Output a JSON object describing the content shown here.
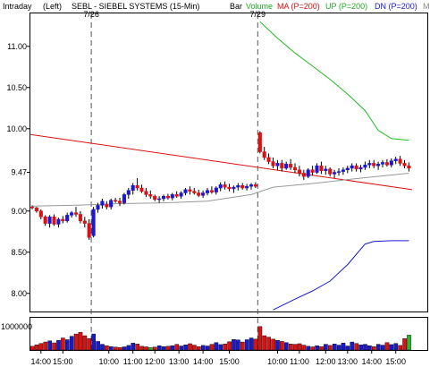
{
  "header": {
    "mode": "Intraday",
    "side": "(Left)",
    "symbol": "SEBL - SIEBEL SYSTEMS (15-Min)",
    "chart_type": "Bar",
    "volume_label": "Volume",
    "ma_label": "MA (P=200)",
    "up_label": "UP (P=200)",
    "dn_label": "DN (P=200)",
    "extra": "M"
  },
  "colors": {
    "up_candle": "#1a1acc",
    "down_candle": "#dd1111",
    "ma_line": "#dd1111",
    "up_band": "#22bb22",
    "dn_band": "#1a1acc",
    "avg_line": "#999999",
    "vol_green": "#22bb22"
  },
  "chart_data": {
    "type": "candlestick",
    "price_axis": {
      "ylim": [
        7.78,
        11.4
      ],
      "ticks": [
        "8.00",
        "8.50",
        "9.00",
        "9.47",
        "10.00",
        "10.50",
        "11.00"
      ],
      "tick_values": [
        8.0,
        8.5,
        9.0,
        9.47,
        10.0,
        10.5,
        11.0
      ]
    },
    "volume_axis": {
      "ylim": [
        0,
        1000000
      ],
      "ticks": [
        "1000000"
      ]
    },
    "date_markers": [
      {
        "label": "7/26",
        "index": 14
      },
      {
        "label": "7/29",
        "index": 52
      }
    ],
    "x_ticks": [
      {
        "label": "14:00",
        "index": 2
      },
      {
        "label": "15:00",
        "index": 7
      },
      {
        "label": "10:00",
        "index": 17.5
      },
      {
        "label": "11:00",
        "index": 23
      },
      {
        "label": "12:00",
        "index": 28
      },
      {
        "label": "13:00",
        "index": 33.5
      },
      {
        "label": "14:00",
        "index": 39
      },
      {
        "label": "15:00",
        "index": 45
      },
      {
        "label": "10:00",
        "index": 56
      },
      {
        "label": "11:00",
        "index": 61
      },
      {
        "label": "12:00",
        "index": 67
      },
      {
        "label": "13:00",
        "index": 72
      },
      {
        "label": "14:00",
        "index": 77.5
      },
      {
        "label": "15:00",
        "index": 83
      }
    ],
    "candles": [
      [
        9.05,
        9.07,
        9.02,
        9.04
      ],
      [
        9.04,
        9.05,
        8.98,
        9.0
      ],
      [
        9.0,
        9.02,
        8.9,
        8.93
      ],
      [
        8.93,
        8.95,
        8.82,
        8.85
      ],
      [
        8.85,
        8.95,
        8.8,
        8.93
      ],
      [
        8.93,
        8.96,
        8.82,
        8.84
      ],
      [
        8.84,
        8.92,
        8.8,
        8.9
      ],
      [
        8.9,
        8.94,
        8.85,
        8.88
      ],
      [
        8.88,
        8.98,
        8.86,
        8.95
      ],
      [
        8.95,
        9.0,
        8.92,
        8.98
      ],
      [
        8.98,
        9.05,
        8.93,
        8.96
      ],
      [
        8.96,
        9.0,
        8.85,
        8.88
      ],
      [
        8.88,
        8.93,
        8.8,
        8.85
      ],
      [
        8.85,
        8.9,
        8.65,
        8.68
      ],
      [
        8.7,
        9.05,
        8.68,
        9.02
      ],
      [
        9.02,
        9.1,
        8.98,
        9.07
      ],
      [
        9.07,
        9.15,
        9.03,
        9.12
      ],
      [
        9.08,
        9.12,
        9.02,
        9.05
      ],
      [
        9.05,
        9.15,
        9.02,
        9.13
      ],
      [
        9.13,
        9.16,
        9.1,
        9.12
      ],
      [
        9.12,
        9.16,
        9.06,
        9.1
      ],
      [
        9.1,
        9.22,
        9.08,
        9.2
      ],
      [
        9.2,
        9.28,
        9.15,
        9.25
      ],
      [
        9.25,
        9.34,
        9.2,
        9.31
      ],
      [
        9.31,
        9.4,
        9.25,
        9.28
      ],
      [
        9.28,
        9.32,
        9.22,
        9.24
      ],
      [
        9.24,
        9.28,
        9.17,
        9.2
      ],
      [
        9.2,
        9.25,
        9.15,
        9.18
      ],
      [
        9.18,
        9.2,
        9.12,
        9.14
      ],
      [
        9.14,
        9.18,
        9.1,
        9.15
      ],
      [
        9.15,
        9.2,
        9.12,
        9.18
      ],
      [
        9.18,
        9.21,
        9.14,
        9.16
      ],
      [
        9.16,
        9.22,
        9.13,
        9.2
      ],
      [
        9.2,
        9.24,
        9.16,
        9.18
      ],
      [
        9.18,
        9.24,
        9.15,
        9.22
      ],
      [
        9.22,
        9.28,
        9.19,
        9.26
      ],
      [
        9.26,
        9.3,
        9.2,
        9.24
      ],
      [
        9.24,
        9.28,
        9.2,
        9.22
      ],
      [
        9.22,
        9.26,
        9.17,
        9.19
      ],
      [
        9.19,
        9.25,
        9.16,
        9.22
      ],
      [
        9.22,
        9.28,
        9.19,
        9.25
      ],
      [
        9.25,
        9.3,
        9.21,
        9.23
      ],
      [
        9.23,
        9.3,
        9.2,
        9.28
      ],
      [
        9.28,
        9.35,
        9.24,
        9.32
      ],
      [
        9.32,
        9.36,
        9.26,
        9.29
      ],
      [
        9.29,
        9.33,
        9.24,
        9.27
      ],
      [
        9.27,
        9.31,
        9.22,
        9.29
      ],
      [
        9.29,
        9.34,
        9.25,
        9.31
      ],
      [
        9.31,
        9.34,
        9.26,
        9.28
      ],
      [
        9.28,
        9.33,
        9.25,
        9.3
      ],
      [
        9.3,
        9.34,
        9.26,
        9.32
      ],
      [
        9.32,
        9.35,
        9.28,
        9.3
      ],
      [
        9.95,
        9.97,
        9.7,
        9.72
      ],
      [
        9.72,
        9.78,
        9.62,
        9.65
      ],
      [
        9.65,
        9.7,
        9.57,
        9.6
      ],
      [
        9.6,
        9.65,
        9.52,
        9.55
      ],
      [
        9.55,
        9.62,
        9.5,
        9.58
      ],
      [
        9.58,
        9.62,
        9.48,
        9.52
      ],
      [
        9.52,
        9.6,
        9.5,
        9.57
      ],
      [
        9.57,
        9.63,
        9.5,
        9.53
      ],
      [
        9.53,
        9.58,
        9.46,
        9.5
      ],
      [
        9.5,
        9.55,
        9.42,
        9.46
      ],
      [
        9.46,
        9.5,
        9.38,
        9.42
      ],
      [
        9.42,
        9.52,
        9.4,
        9.5
      ],
      [
        9.5,
        9.55,
        9.43,
        9.47
      ],
      [
        9.47,
        9.58,
        9.45,
        9.55
      ],
      [
        9.55,
        9.6,
        9.45,
        9.49
      ],
      [
        9.49,
        9.55,
        9.44,
        9.51
      ],
      [
        9.51,
        9.53,
        9.42,
        9.45
      ],
      [
        9.45,
        9.5,
        9.4,
        9.47
      ],
      [
        9.47,
        9.52,
        9.43,
        9.48
      ],
      [
        9.48,
        9.53,
        9.44,
        9.5
      ],
      [
        9.5,
        9.55,
        9.46,
        9.52
      ],
      [
        9.52,
        9.58,
        9.48,
        9.55
      ],
      [
        9.55,
        9.58,
        9.48,
        9.51
      ],
      [
        9.51,
        9.56,
        9.47,
        9.53
      ],
      [
        9.53,
        9.6,
        9.5,
        9.56
      ],
      [
        9.56,
        9.62,
        9.52,
        9.58
      ],
      [
        9.58,
        9.62,
        9.52,
        9.55
      ],
      [
        9.55,
        9.6,
        9.5,
        9.57
      ],
      [
        9.57,
        9.62,
        9.53,
        9.59
      ],
      [
        9.59,
        9.63,
        9.54,
        9.56
      ],
      [
        9.56,
        9.64,
        9.53,
        9.61
      ],
      [
        9.61,
        9.66,
        9.57,
        9.63
      ],
      [
        9.63,
        9.67,
        9.55,
        9.58
      ],
      [
        9.58,
        9.62,
        9.52,
        9.55
      ],
      [
        9.55,
        9.59,
        9.48,
        9.52
      ]
    ],
    "volume": [
      130000,
      180000,
      230000,
      280000,
      320000,
      250000,
      340000,
      420000,
      360000,
      480000,
      560000,
      620000,
      500000,
      400000,
      560000,
      300000,
      200000,
      150000,
      120000,
      100000,
      90000,
      110000,
      160000,
      240000,
      210000,
      130000,
      110000,
      90000,
      100000,
      150000,
      120000,
      130000,
      150000,
      200000,
      140000,
      180000,
      220000,
      170000,
      120000,
      160000,
      140000,
      200000,
      260000,
      190000,
      210000,
      290000,
      370000,
      350000,
      280000,
      360000,
      420000,
      380000,
      820000,
      500000,
      450000,
      380000,
      340000,
      300000,
      260000,
      210000,
      200000,
      220000,
      170000,
      130000,
      110000,
      150000,
      120000,
      200000,
      160000,
      210000,
      170000,
      240000,
      140000,
      280000,
      230000,
      180000,
      200000,
      150000,
      120000,
      200000,
      170000,
      260000,
      190000,
      230000,
      160000,
      400000,
      520000
    ],
    "green_volume_bars": [
      27,
      86
    ],
    "ma_line": {
      "from": 9.93,
      "to": 9.26
    },
    "avg_line": {
      "points": [
        [
          0,
          9.06
        ],
        [
          10,
          9.07
        ],
        [
          20,
          9.09
        ],
        [
          30,
          9.1
        ],
        [
          40,
          9.12
        ],
        [
          50,
          9.2
        ],
        [
          55,
          9.29
        ],
        [
          65,
          9.34
        ],
        [
          75,
          9.4
        ],
        [
          86,
          9.46
        ]
      ]
    },
    "up_band": {
      "points": [
        [
          52,
          11.3
        ],
        [
          56,
          11.1
        ],
        [
          60,
          10.92
        ],
        [
          64,
          10.76
        ],
        [
          68,
          10.6
        ],
        [
          72,
          10.42
        ],
        [
          76,
          10.22
        ],
        [
          79,
          9.98
        ],
        [
          82,
          9.88
        ],
        [
          86,
          9.86
        ]
      ]
    },
    "dn_band": {
      "points": [
        [
          55,
          7.8
        ],
        [
          60,
          7.93
        ],
        [
          64,
          8.03
        ],
        [
          68,
          8.15
        ],
        [
          72,
          8.35
        ],
        [
          76,
          8.6
        ],
        [
          78,
          8.63
        ],
        [
          82,
          8.64
        ],
        [
          86,
          8.64
        ]
      ]
    }
  }
}
